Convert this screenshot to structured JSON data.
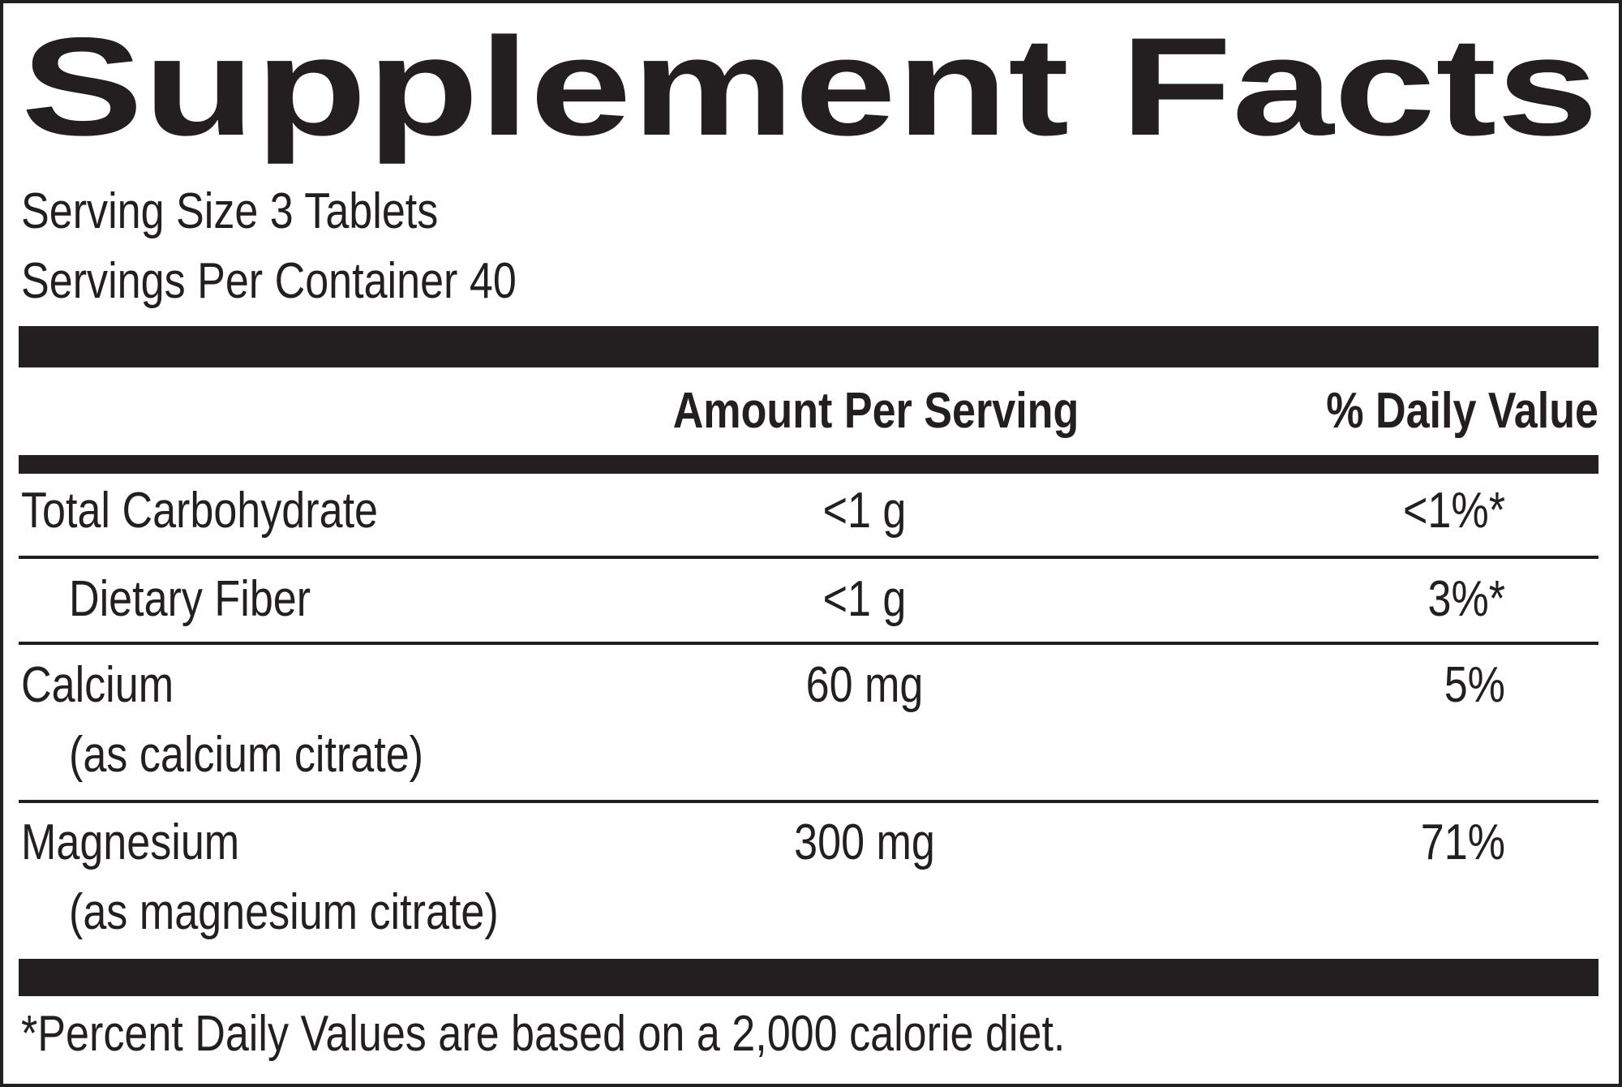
{
  "title": "Supplement Facts",
  "serving_size": "Serving Size 3 Tablets",
  "servings_per_container": "Servings Per Container 40",
  "header": {
    "amount": "Amount Per Serving",
    "daily_value": "% Daily Value"
  },
  "rows": [
    {
      "name": "Total Carbohydrate",
      "amount": "<1 g",
      "daily_value": "<1%*"
    },
    {
      "name": "Dietary Fiber",
      "amount": "<1 g",
      "daily_value": "3%*"
    },
    {
      "name": "Calcium",
      "detail": "(as calcium citrate)",
      "amount": "60 mg",
      "daily_value": "5%"
    },
    {
      "name": "Magnesium",
      "detail": "(as magnesium citrate)",
      "amount": "300 mg",
      "daily_value": "71%"
    }
  ],
  "footnote": "*Percent Daily Values are based on a 2,000 calorie diet."
}
